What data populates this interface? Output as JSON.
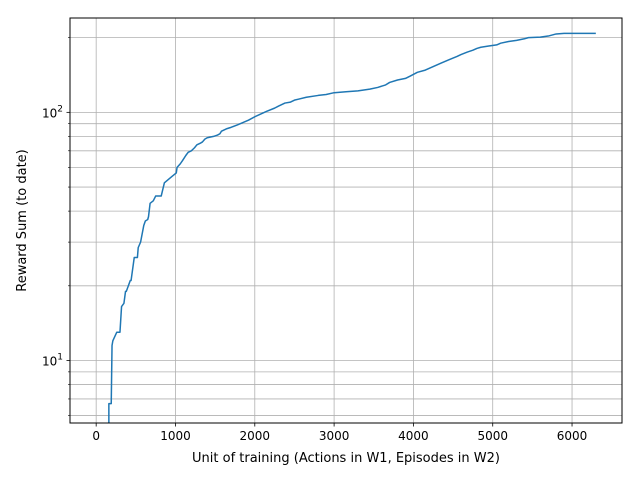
{
  "chart_data": {
    "type": "line",
    "title": "",
    "xlabel": "Unit of training (Actions in W1, Episodes in W2)",
    "ylabel": "Reward Sum (to date)",
    "xlim": [
      -330,
      6630
    ],
    "ylim": [
      5.6,
      240
    ],
    "yscale": "log",
    "grid": true,
    "grid_scope": "major and minor",
    "legend": "none",
    "x_ticks": [
      0,
      1000,
      2000,
      3000,
      4000,
      5000,
      6000
    ],
    "y_major_ticks": [
      10,
      100
    ],
    "y_minor_ticks": [
      6,
      7,
      8,
      9,
      20,
      30,
      40,
      50,
      60,
      70,
      80,
      90,
      200
    ],
    "series": [
      {
        "color": "#1f77b4",
        "x": [
          160,
          160,
          170,
          190,
          200,
          210,
          260,
          300,
          320,
          350,
          370,
          380,
          430,
          440,
          480,
          500,
          520,
          530,
          560,
          600,
          620,
          650,
          660,
          680,
          720,
          750,
          790,
          820,
          860,
          920,
          950,
          1010,
          1020,
          1060,
          1090,
          1130,
          1160,
          1200,
          1240,
          1270,
          1310,
          1340,
          1370,
          1400,
          1480,
          1530,
          1560,
          1580,
          1650,
          1700,
          1780,
          1850,
          1920,
          2000,
          2060,
          2150,
          2250,
          2300,
          2380,
          2450,
          2500,
          2550,
          2650,
          2800,
          2900,
          3000,
          3150,
          3300,
          3450,
          3550,
          3650,
          3700,
          3800,
          3900,
          3960,
          4050,
          4150,
          4250,
          4350,
          4450,
          4550,
          4600,
          4680,
          4750,
          4800,
          4850,
          4950,
          5050,
          5100,
          5200,
          5300,
          5400,
          5450,
          5600,
          5700,
          5800,
          5900,
          6000,
          6100,
          6200,
          6250,
          6300
        ],
        "y": [
          5.6,
          6.7,
          6.7,
          6.7,
          11.5,
          12,
          13,
          13,
          16.5,
          17,
          19,
          19,
          21,
          21,
          26,
          26,
          26,
          28.5,
          30,
          35,
          36.5,
          37,
          38,
          43,
          44,
          46,
          46,
          46,
          52,
          54,
          55,
          57,
          60,
          62,
          64,
          67,
          69,
          70,
          72,
          74,
          75,
          76,
          78,
          79,
          80,
          81,
          82,
          84,
          86,
          87,
          89,
          91,
          93,
          96,
          98,
          101,
          104,
          106,
          109,
          110,
          112,
          113,
          115,
          117,
          118,
          120,
          121,
          122,
          124,
          126,
          129,
          132,
          135,
          137,
          140,
          145,
          148,
          153,
          158,
          163,
          168,
          171,
          175,
          178,
          181,
          183,
          185,
          187,
          190,
          193,
          195,
          198,
          200,
          201,
          203,
          207,
          208,
          208,
          208,
          208,
          208,
          208
        ]
      }
    ]
  }
}
